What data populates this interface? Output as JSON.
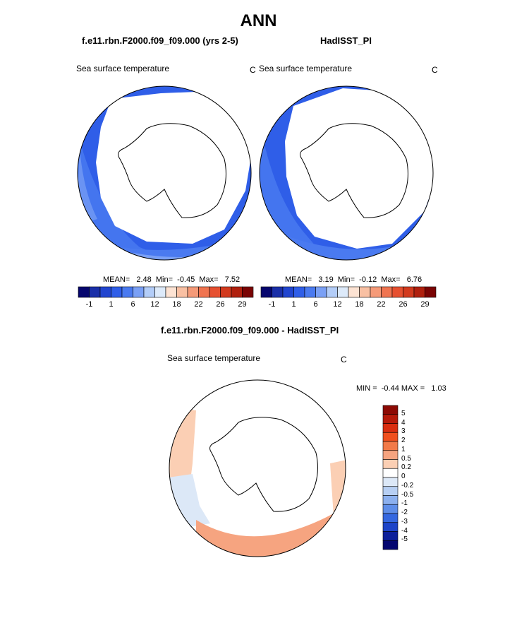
{
  "title": "ANN",
  "panels": {
    "model": {
      "subtitle": "f.e11.rbn.F2000.f09_f09.000 (yrs 2-5)",
      "variable": "Sea surface temperature",
      "units": "C",
      "stats_text": "MEAN=   2.48  Min=  -0.45  Max=   7.52"
    },
    "obs": {
      "subtitle": "HadISST_PI",
      "variable": "Sea surface temperature",
      "units": "C",
      "stats_text": "MEAN=   3.19  Min=  -0.12  Max=   6.76"
    },
    "diff": {
      "subtitle": "f.e11.rbn.F2000.f09_f09.000 - HadISST_PI",
      "variable": "Sea surface temperature",
      "units": "C",
      "stats_text": "MIN =  -0.44 MAX =   1.03"
    }
  },
  "chart_data": [
    {
      "type": "heatmap",
      "map": "south-polar-stereographic",
      "variable": "Sea surface temperature",
      "units": "C",
      "mean": 2.48,
      "min": -0.45,
      "max": 7.52,
      "colorbar_labels": [
        "-1",
        "1",
        "6",
        "12",
        "18",
        "22",
        "26",
        "29"
      ],
      "colorbar_colors": [
        "#06066e",
        "#1a2fa8",
        "#2145cf",
        "#2f5ee8",
        "#4a7af0",
        "#7aa0f5",
        "#b3cdf8",
        "#ddeafa",
        "#fde3d3",
        "#f9c0a3",
        "#f59a78",
        "#f07450",
        "#e65030",
        "#d23a1e",
        "#b0200e",
        "#7a0404"
      ]
    },
    {
      "type": "heatmap",
      "map": "south-polar-stereographic",
      "variable": "Sea surface temperature",
      "units": "C",
      "mean": 3.19,
      "min": -0.12,
      "max": 6.76,
      "colorbar_labels": [
        "-1",
        "1",
        "6",
        "12",
        "18",
        "22",
        "26",
        "29"
      ],
      "colorbar_colors": [
        "#06066e",
        "#1a2fa8",
        "#2145cf",
        "#2f5ee8",
        "#4a7af0",
        "#7aa0f5",
        "#b3cdf8",
        "#ddeafa",
        "#fde3d3",
        "#f9c0a3",
        "#f59a78",
        "#f07450",
        "#e65030",
        "#d23a1e",
        "#b0200e",
        "#7a0404"
      ]
    },
    {
      "type": "heatmap",
      "map": "south-polar-stereographic",
      "variable": "Sea surface temperature",
      "units": "C",
      "min": -0.44,
      "max": 1.03,
      "colorbar_labels": [
        "5",
        "4",
        "3",
        "2",
        "1",
        "0.5",
        "0.2",
        "0",
        "-0.2",
        "-0.5",
        "-1",
        "-2",
        "-3",
        "-4",
        "-5"
      ],
      "colorbar_colors": [
        "#8c0a04",
        "#b51a0a",
        "#d92e10",
        "#f0501e",
        "#f27a48",
        "#f6a480",
        "#fbcfb4",
        "#ffffff",
        "#dce8f7",
        "#b7cff3",
        "#8cb0ee",
        "#5f8ee8",
        "#3568e0",
        "#1d44c8",
        "#0c1f9a",
        "#040670"
      ]
    }
  ]
}
